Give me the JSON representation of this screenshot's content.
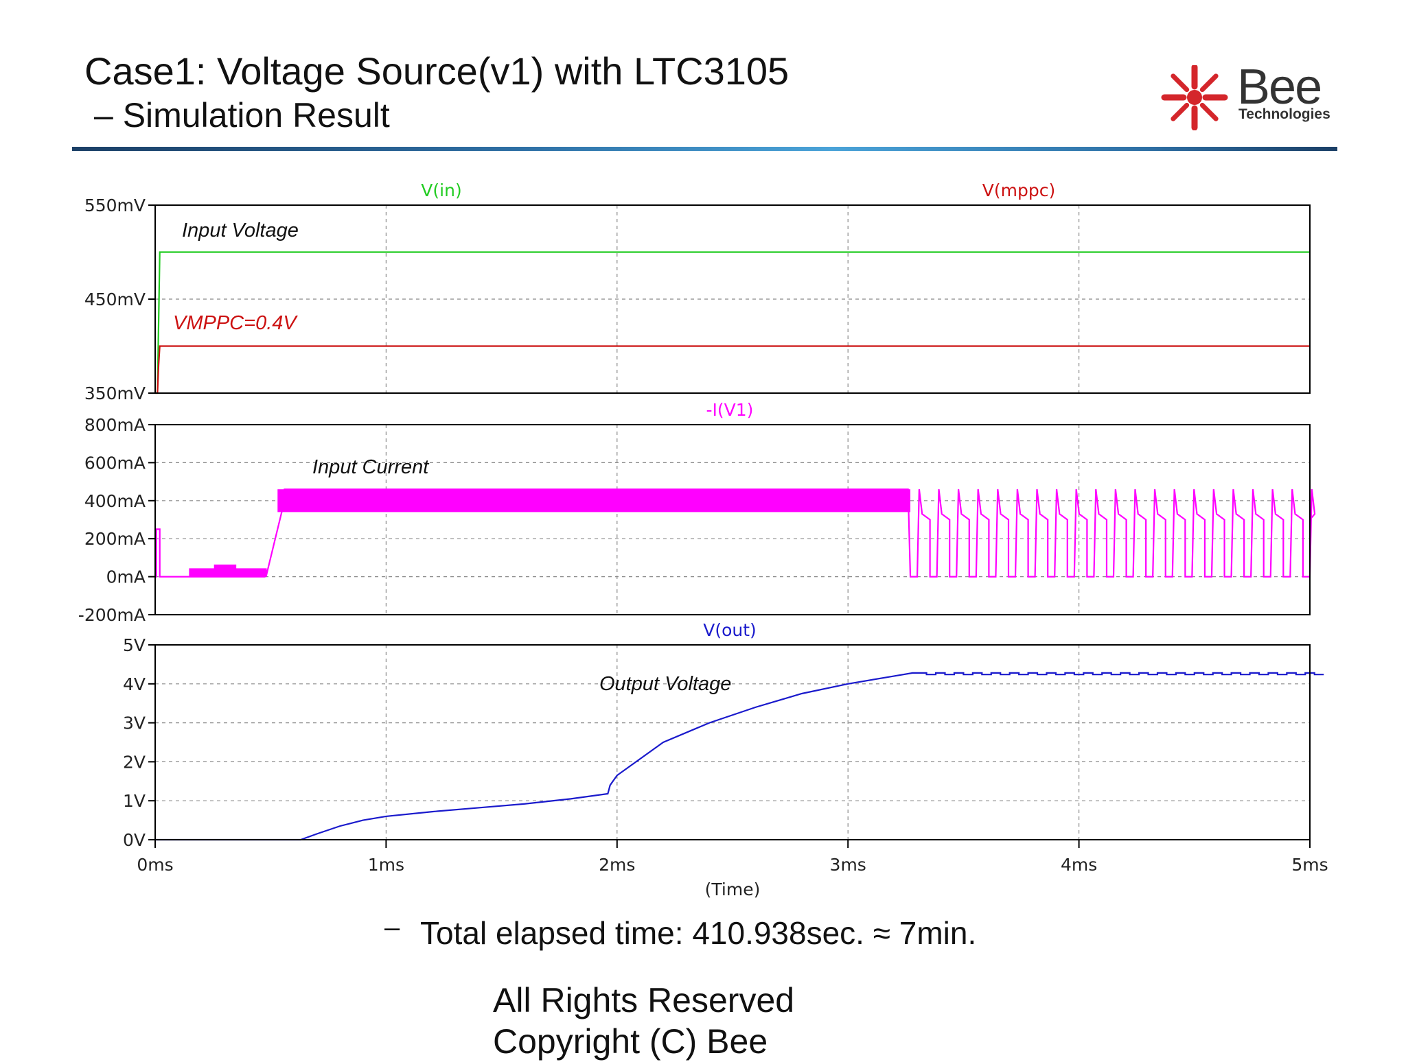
{
  "slide": {
    "title": "Case1: Voltage Source(v1) with LTC3105",
    "subtitle": "– Simulation Result",
    "elapsed_dash": "–",
    "elapsed": "Total elapsed time: 410.938sec. ≈ 7min.",
    "rights_line1": "All Rights Reserved",
    "rights_line2": "Copyright (C) Bee"
  },
  "logo": {
    "word": "Bee",
    "sub": "Technologies",
    "color_spokes": "#d4262b",
    "color_text": "#333333"
  },
  "chart_data": [
    {
      "type": "line",
      "panel": "top",
      "annotation": "Input Voltage",
      "annotation2": "VMPPC=0.4V",
      "yticks": [
        "550mV",
        "450mV",
        "350mV"
      ],
      "ylim": [
        350,
        550
      ],
      "xlim": [
        0,
        5
      ],
      "grid": true,
      "series": [
        {
          "name": "V(in)",
          "color": "#22cc22",
          "x": [
            0,
            0.01,
            0.02,
            5
          ],
          "y": [
            350,
            350,
            500,
            500
          ]
        },
        {
          "name": "V(mppc)",
          "color": "#cc1111",
          "x": [
            0,
            0.01,
            0.015,
            0.02,
            5
          ],
          "y": [
            350,
            350,
            380,
            400,
            400
          ]
        }
      ]
    },
    {
      "type": "line",
      "panel": "middle",
      "annotation": "Input Current",
      "yticks": [
        "800mA",
        "600mA",
        "400mA",
        "200mA",
        "0mA",
        "-200mA"
      ],
      "ylim": [
        -200,
        800
      ],
      "xlim": [
        0,
        5
      ],
      "grid": true,
      "series": [
        {
          "name": "-I(V1)",
          "color": "#ff00ff",
          "x": [
            0,
            0.01,
            0.02,
            0.03,
            0.5,
            0.55,
            3.25,
            5
          ],
          "y": [
            0,
            250,
            250,
            0,
            0,
            350,
            400,
            400
          ]
        }
      ],
      "band_ma": {
        "low": 340,
        "high": 460
      },
      "pulses": {
        "start_ms": 3.27,
        "end_ms": 5.0,
        "period_ms": 0.085,
        "high_ma": 460,
        "low_ma": 0
      }
    },
    {
      "type": "line",
      "panel": "bottom",
      "annotation": "Output Voltage",
      "yticks": [
        "5V",
        "4V",
        "3V",
        "2V",
        "1V",
        "0V"
      ],
      "ylim": [
        0,
        5
      ],
      "xlim": [
        0,
        5
      ],
      "xticks": [
        "0ms",
        "1ms",
        "2ms",
        "3ms",
        "4ms",
        "5ms"
      ],
      "xlabel": "(Time)",
      "grid": true,
      "series": [
        {
          "name": "V(out)",
          "color": "#1a1acc",
          "x": [
            0,
            0.63,
            0.7,
            0.8,
            0.9,
            1.0,
            1.2,
            1.4,
            1.6,
            1.8,
            1.96,
            1.97,
            2.0,
            2.2,
            2.4,
            2.6,
            2.8,
            3.0,
            3.2,
            3.28,
            5.0
          ],
          "y": [
            0,
            0,
            0.15,
            0.35,
            0.5,
            0.6,
            0.72,
            0.82,
            0.92,
            1.05,
            1.18,
            1.4,
            1.65,
            2.5,
            3.0,
            3.4,
            3.75,
            4.0,
            4.2,
            4.28,
            4.28
          ]
        }
      ]
    }
  ]
}
